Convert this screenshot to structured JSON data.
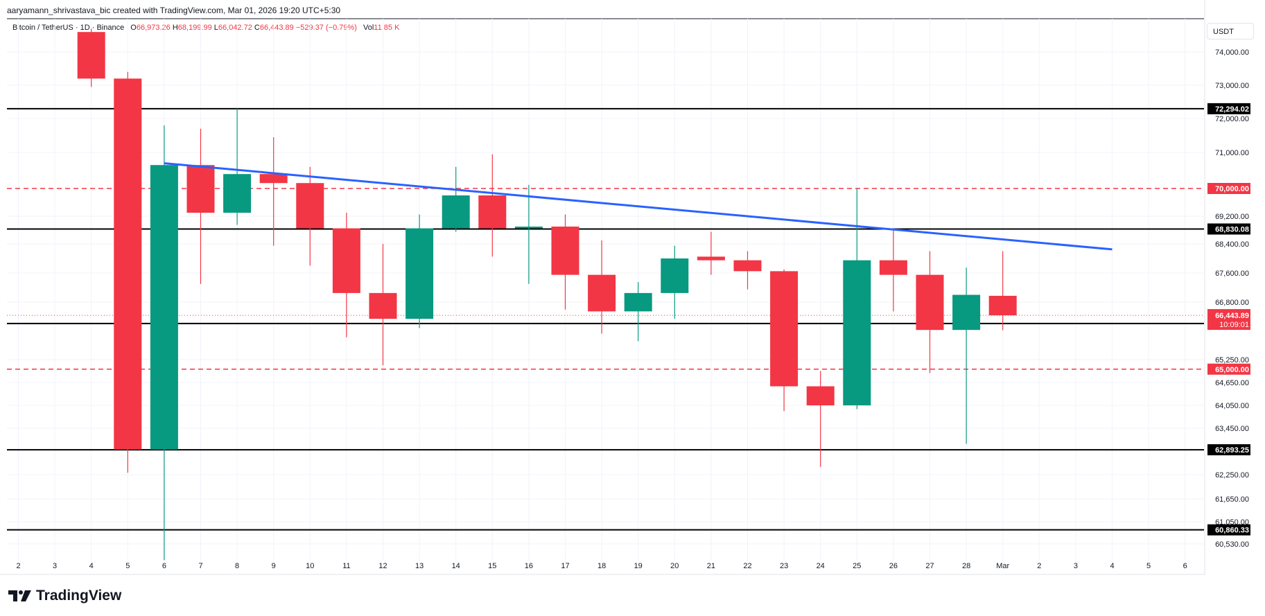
{
  "byline": "aaryamann_shrivastava_bic created with TradingView.com, Mar 01, 2026 19:20 UTC+5:30",
  "legend": {
    "symbol": "Bitcoin / TetherUS · 1D · Binance",
    "o_label": "O",
    "o_value": "66,973.26",
    "h_label": "H",
    "h_value": "68,199.99",
    "l_label": "L",
    "l_value": "66,042.72",
    "c_label": "C",
    "c_value": "66,443.89",
    "change": "−529.37 (−0.79%)",
    "vol_label": "Vol",
    "vol_value": "11.85 K"
  },
  "currency": "USDT",
  "logo_text": "TradingView",
  "colors": {
    "up": "#089981",
    "down": "#f23645",
    "trend": "#2962ff",
    "level": "#000000",
    "dashed": "#f23645"
  },
  "chart_data": {
    "type": "candlestick",
    "price_axis_labels": [
      "74,000.00",
      "73,000.00",
      "72,000.00",
      "71,000.00",
      "69,200.00",
      "68,400.00",
      "67,600.00",
      "66,800.00",
      "65,250.00",
      "64,650.00",
      "64,050.00",
      "63,450.00",
      "62,250.00",
      "61,650.00",
      "61,050.00",
      "60,530.00"
    ],
    "time_axis_labels": [
      "2",
      "3",
      "4",
      "5",
      "6",
      "7",
      "8",
      "9",
      "10",
      "11",
      "12",
      "13",
      "14",
      "15",
      "16",
      "17",
      "18",
      "19",
      "20",
      "21",
      "22",
      "23",
      "24",
      "25",
      "26",
      "27",
      "28",
      "Mar",
      "2",
      "3",
      "4",
      "5",
      "6"
    ],
    "candles": [
      {
        "o": 74600,
        "h": 74700,
        "l": 72950,
        "c": 73200
      },
      {
        "o": 73200,
        "h": 73400,
        "l": 62300,
        "c": 62900
      },
      {
        "o": 62900,
        "h": 71800,
        "l": 60150,
        "c": 70650
      },
      {
        "o": 70650,
        "h": 71700,
        "l": 67300,
        "c": 69300
      },
      {
        "o": 69300,
        "h": 72300,
        "l": 68950,
        "c": 70400
      },
      {
        "o": 70400,
        "h": 71450,
        "l": 68350,
        "c": 70150
      },
      {
        "o": 70150,
        "h": 70600,
        "l": 67800,
        "c": 68850
      },
      {
        "o": 68850,
        "h": 69300,
        "l": 65850,
        "c": 67050
      },
      {
        "o": 67050,
        "h": 68400,
        "l": 65100,
        "c": 66350
      },
      {
        "o": 66350,
        "h": 69250,
        "l": 66100,
        "c": 68850
      },
      {
        "o": 68850,
        "h": 70600,
        "l": 68750,
        "c": 69800
      },
      {
        "o": 69800,
        "h": 70950,
        "l": 68050,
        "c": 68850
      },
      {
        "o": 68850,
        "h": 70100,
        "l": 67300,
        "c": 68900
      },
      {
        "o": 68900,
        "h": 69250,
        "l": 66600,
        "c": 67550
      },
      {
        "o": 67550,
        "h": 68500,
        "l": 65950,
        "c": 66550
      },
      {
        "o": 66550,
        "h": 67350,
        "l": 65750,
        "c": 67050
      },
      {
        "o": 67050,
        "h": 68350,
        "l": 66350,
        "c": 68000
      },
      {
        "o": 68050,
        "h": 68750,
        "l": 67550,
        "c": 67950
      },
      {
        "o": 67950,
        "h": 68200,
        "l": 67150,
        "c": 67650
      },
      {
        "o": 67650,
        "h": 67700,
        "l": 63900,
        "c": 64550
      },
      {
        "o": 64550,
        "h": 64950,
        "l": 62450,
        "c": 64050
      },
      {
        "o": 64050,
        "h": 70000,
        "l": 63950,
        "c": 67950
      },
      {
        "o": 67950,
        "h": 68850,
        "l": 66550,
        "c": 67550
      },
      {
        "o": 67550,
        "h": 68200,
        "l": 64900,
        "c": 66050
      },
      {
        "o": 66050,
        "h": 67750,
        "l": 63050,
        "c": 67000
      },
      {
        "o": 66973.26,
        "h": 68199.99,
        "l": 66042.72,
        "c": 66443.89
      }
    ],
    "levels": [
      {
        "value": 72294.02,
        "label": "72,294.02",
        "style": "solid"
      },
      {
        "value": 70000.0,
        "label": "70,000.00",
        "style": "dashed"
      },
      {
        "value": 68830.08,
        "label": "68,830.08",
        "style": "solid"
      },
      {
        "value": 66224.04,
        "label": "66,224.04",
        "style": "solid"
      },
      {
        "value": 65000.0,
        "label": "65,000.00",
        "style": "dashed"
      },
      {
        "value": 62893.25,
        "label": "62,893.25",
        "style": "solid"
      },
      {
        "value": 60860.33,
        "label": "60,860.33",
        "style": "solid"
      }
    ],
    "last_price": {
      "value": 66443.89,
      "label": "66,443.89",
      "countdown": "10:09:01"
    },
    "trendline": {
      "start": {
        "date": "Feb 6",
        "value": 70700
      },
      "end": {
        "date": "Mar 4",
        "value": 68250
      }
    },
    "grid": true
  }
}
